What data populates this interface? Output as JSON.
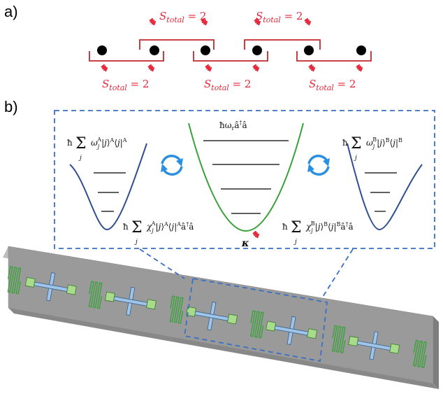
{
  "panel_a": {
    "label": "a)",
    "spin_labels_top": [
      "S_total = 2",
      "S_total = 2"
    ],
    "spin_labels_bottom": [
      "S_total = 2",
      "S_total = 2",
      "S_total = 2"
    ],
    "colors": {
      "chain": "#2f5fbf",
      "bracket": "#c0282d",
      "wavy": "#e8273a",
      "site": "#000000"
    }
  },
  "panel_b": {
    "label": "b)",
    "resonator_energy": "ħω_r â†â",
    "qubit_A_energy": "ħ Σ_j ω_j^A |j⟩^A ⟨j|^A",
    "qubit_B_energy": "ħ Σ_j ω_j^B |j⟩^B ⟨j|^B",
    "coupling_A": "ħ Σ_j χ_j^A |j⟩^A ⟨j|^A â†â",
    "coupling_B": "ħ Σ_j χ_j^B |j⟩^B ⟨j|^B â†â",
    "loss": "κ",
    "colors": {
      "resonator": "#3aa23a",
      "qubit_well": "#2f4f8f",
      "swap_arrows": "#2b8fe0",
      "dashed_box": "#3a6fc4",
      "chip": "#9a9a9a",
      "cross": "#9ec4e8",
      "coupler": "#a8dc8c"
    }
  }
}
